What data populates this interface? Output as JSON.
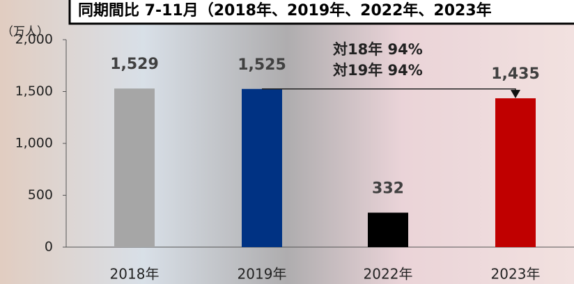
{
  "chart_data": {
    "type": "bar",
    "title": "同期間比 7-11月（2018年、2019年、2022年、2023年",
    "y_axis_label": "（万人）",
    "categories": [
      "2018年",
      "2019年",
      "2022年",
      "2023年"
    ],
    "values": [
      1529,
      1525,
      332,
      1435
    ],
    "value_labels": [
      "1,529",
      "1,525",
      "332",
      "1,435"
    ],
    "colors": [
      "#a6a6a6",
      "#003283",
      "#000000",
      "#c00000"
    ],
    "ylim": [
      0,
      2000
    ],
    "yticks": [
      0,
      500,
      {
        "value": 1000,
        "label": "1,000"
      },
      {
        "value": 1500,
        "label": "1,500"
      },
      {
        "value": 2000,
        "label": "2,000"
      }
    ],
    "annotations": [
      "対18年 94%",
      "対19年 94%"
    ]
  }
}
